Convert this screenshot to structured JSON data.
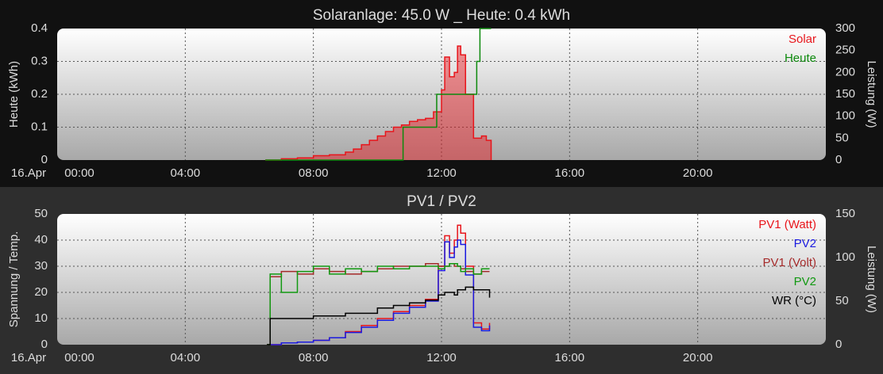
{
  "chart_data": [
    {
      "type": "line",
      "title": "Solaranlage: 45.0 W _ Heute: 0.4 kWh",
      "date_label": "16.Apr",
      "ylabel": "Heute (kWh)",
      "y2label": "Leistung (W)",
      "grid": true,
      "legend": "upper right",
      "step": true,
      "xlim": [
        0,
        24
      ],
      "xticks": [
        {
          "value": 0,
          "label": "00:00"
        },
        {
          "value": 4,
          "label": "04:00"
        },
        {
          "value": 8,
          "label": "08:00"
        },
        {
          "value": 12,
          "label": "12:00"
        },
        {
          "value": 16,
          "label": "16:00"
        },
        {
          "value": 20,
          "label": "20:00"
        }
      ],
      "ylim": [
        0,
        0.4
      ],
      "yticks": [
        0,
        0.1,
        0.2,
        0.3,
        0.4
      ],
      "y2lim": [
        0,
        300
      ],
      "y2ticks": [
        0,
        50,
        100,
        150,
        200,
        250,
        300
      ],
      "x": [
        6.5,
        7,
        7.5,
        8,
        8.5,
        9,
        9.25,
        9.5,
        9.75,
        10,
        10.25,
        10.5,
        10.75,
        11,
        11.25,
        11.5,
        11.75,
        12,
        12.1,
        12.25,
        12.4,
        12.5,
        12.6,
        12.75,
        13,
        13.25,
        13.4,
        13.55
      ],
      "series": [
        {
          "name": "Solar",
          "color": "#e8151b",
          "axis": "y2",
          "fill": true,
          "values": [
            0,
            3,
            5,
            10,
            12,
            18,
            25,
            35,
            45,
            55,
            65,
            75,
            80,
            88,
            92,
            95,
            110,
            160,
            235,
            190,
            200,
            260,
            240,
            150,
            50,
            55,
            45,
            0
          ]
        },
        {
          "name": "Heute",
          "color": "#0d8a0d",
          "axis": "y",
          "x": [
            6.5,
            10.8,
            11.85,
            13.1,
            13.2,
            13.55
          ],
          "values": [
            0,
            0.1,
            0.2,
            0.3,
            0.4,
            0.4
          ]
        }
      ]
    },
    {
      "type": "line",
      "title": "PV1 / PV2",
      "date_label": "16.Apr",
      "ylabel": "Spannung / Temp.",
      "y2label": "Leistung (W)",
      "grid": true,
      "legend": "upper right",
      "step": true,
      "xlim": [
        0,
        24
      ],
      "xticks": [
        {
          "value": 0,
          "label": "00:00"
        },
        {
          "value": 4,
          "label": "04:00"
        },
        {
          "value": 8,
          "label": "08:00"
        },
        {
          "value": 12,
          "label": "12:00"
        },
        {
          "value": 16,
          "label": "16:00"
        },
        {
          "value": 20,
          "label": "20:00"
        }
      ],
      "ylim": [
        0,
        50
      ],
      "yticks": [
        0,
        10,
        20,
        30,
        40,
        50
      ],
      "y2lim": [
        0,
        150
      ],
      "y2ticks": [
        0,
        50,
        100,
        150
      ],
      "x": [
        6.55,
        6.65,
        7,
        7.5,
        8,
        8.5,
        9,
        9.5,
        10,
        10.5,
        11,
        11.5,
        11.9,
        12.1,
        12.25,
        12.4,
        12.5,
        12.6,
        12.75,
        13,
        13.25,
        13.5
      ],
      "series": [
        {
          "name": "PV1 (Watt)",
          "color": "#e8151b",
          "axis": "y2",
          "values": [
            0,
            0,
            2,
            3,
            5,
            8,
            15,
            22,
            30,
            38,
            45,
            52,
            90,
            125,
            105,
            120,
            137,
            128,
            90,
            25,
            18,
            25
          ]
        },
        {
          "name": "PV2",
          "color": "#1a1ae0",
          "axis": "y2",
          "values": [
            0,
            0,
            2,
            3,
            5,
            8,
            14,
            20,
            28,
            36,
            43,
            50,
            85,
            118,
            100,
            112,
            120,
            115,
            80,
            20,
            16,
            22
          ]
        },
        {
          "name": "PV1 (Volt)",
          "color": "#a52a2a",
          "axis": "y",
          "values": [
            0,
            26,
            28,
            27,
            29,
            28,
            27,
            28,
            29,
            30,
            30,
            31,
            30,
            30,
            31,
            30,
            30,
            29,
            28,
            27,
            28,
            28
          ]
        },
        {
          "name": "PV2",
          "color": "#119911",
          "axis": "y",
          "values": [
            0,
            27,
            20,
            28,
            30,
            27,
            29,
            28,
            30,
            29,
            30,
            30,
            29,
            30,
            31,
            31,
            30,
            28,
            29,
            27,
            29,
            29
          ]
        },
        {
          "name": "WR (°C)",
          "color": "#000000",
          "axis": "y",
          "values": [
            0,
            10,
            10,
            10,
            11,
            11,
            12,
            12,
            14,
            15,
            16,
            17,
            19,
            20,
            20,
            19,
            21,
            21,
            22,
            21,
            21,
            18
          ]
        }
      ]
    }
  ]
}
